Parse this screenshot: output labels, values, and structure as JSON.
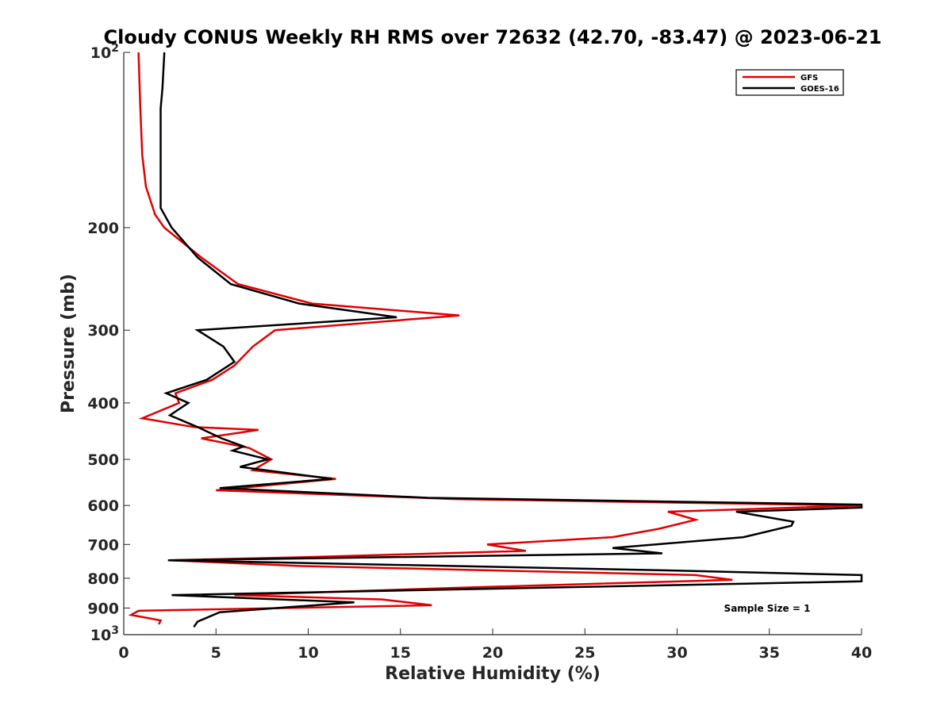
{
  "chart_data": {
    "type": "line",
    "title": "Cloudy CONUS Weekly RH RMS over 72632 (42.70, -83.47) @ 2023-06-21",
    "xlabel": "Relative Humidity (%)",
    "ylabel": "Pressure (mb)",
    "xlim": [
      0,
      40
    ],
    "ylim": [
      100,
      1000
    ],
    "y_scale": "log",
    "y_reversed": true,
    "grid": false,
    "legend_position": "top-right",
    "x_ticks": [
      0,
      5,
      10,
      15,
      20,
      25,
      30,
      35,
      40
    ],
    "y_ticks": [
      {
        "value": 100,
        "base": "10",
        "exp": "2"
      },
      {
        "value": 200,
        "label": "200"
      },
      {
        "value": 300,
        "label": "300"
      },
      {
        "value": 400,
        "label": "400"
      },
      {
        "value": 500,
        "label": "500"
      },
      {
        "value": 600,
        "label": "600"
      },
      {
        "value": 700,
        "label": "700"
      },
      {
        "value": 800,
        "label": "800"
      },
      {
        "value": 900,
        "label": "900"
      },
      {
        "value": 1000,
        "base": "10",
        "exp": "3"
      }
    ],
    "annotation": "Sample Size = 1",
    "series": [
      {
        "name": "GFS",
        "color": "#e00000",
        "points": [
          [
            0.8,
            100
          ],
          [
            0.9,
            125
          ],
          [
            1.0,
            150
          ],
          [
            1.2,
            170
          ],
          [
            1.7,
            190
          ],
          [
            2.2,
            200
          ],
          [
            4.2,
            225
          ],
          [
            6.2,
            250
          ],
          [
            10.2,
            270
          ],
          [
            18.2,
            283
          ],
          [
            8.2,
            300
          ],
          [
            7.0,
            320
          ],
          [
            6.0,
            345
          ],
          [
            4.8,
            365
          ],
          [
            2.8,
            385
          ],
          [
            3.0,
            400
          ],
          [
            1.0,
            425
          ],
          [
            3.8,
            440
          ],
          [
            7.3,
            445
          ],
          [
            4.2,
            460
          ],
          [
            6.8,
            478
          ],
          [
            8.0,
            500
          ],
          [
            7.0,
            522
          ],
          [
            11.5,
            540
          ],
          [
            5.0,
            565
          ],
          [
            18.0,
            585
          ],
          [
            40.0,
            600
          ],
          [
            29.5,
            615
          ],
          [
            31.0,
            635
          ],
          [
            29.0,
            658
          ],
          [
            26.5,
            680
          ],
          [
            19.7,
            700
          ],
          [
            21.8,
            718
          ],
          [
            10.5,
            735
          ],
          [
            2.5,
            745
          ],
          [
            9.5,
            762
          ],
          [
            31.0,
            790
          ],
          [
            33.0,
            805
          ],
          [
            18.5,
            830
          ],
          [
            6.0,
            855
          ],
          [
            14.0,
            870
          ],
          [
            16.7,
            890
          ],
          [
            0.8,
            910
          ],
          [
            0.4,
            925
          ],
          [
            2.0,
            945
          ],
          [
            1.9,
            960
          ]
        ]
      },
      {
        "name": "GOES-16",
        "color": "#000000",
        "points": [
          [
            2.2,
            100
          ],
          [
            2.1,
            115
          ],
          [
            2.0,
            125
          ],
          [
            2.0,
            150
          ],
          [
            2.0,
            170
          ],
          [
            2.0,
            185
          ],
          [
            2.6,
            200
          ],
          [
            4.0,
            225
          ],
          [
            5.8,
            250
          ],
          [
            9.5,
            270
          ],
          [
            14.8,
            285
          ],
          [
            4.0,
            300
          ],
          [
            5.4,
            320
          ],
          [
            6.0,
            340
          ],
          [
            4.5,
            365
          ],
          [
            2.3,
            385
          ],
          [
            3.5,
            400
          ],
          [
            2.5,
            420
          ],
          [
            4.0,
            440
          ],
          [
            5.3,
            460
          ],
          [
            6.5,
            475
          ],
          [
            5.9,
            483
          ],
          [
            7.8,
            500
          ],
          [
            6.3,
            515
          ],
          [
            11.3,
            540
          ],
          [
            5.2,
            560
          ],
          [
            16.5,
            582
          ],
          [
            40.0,
            598
          ],
          [
            40.0,
            605
          ],
          [
            33.2,
            615
          ],
          [
            36.3,
            640
          ],
          [
            36.2,
            650
          ],
          [
            33.6,
            680
          ],
          [
            26.5,
            710
          ],
          [
            29.2,
            725
          ],
          [
            2.4,
            745
          ],
          [
            29.0,
            775
          ],
          [
            40.0,
            790
          ],
          [
            40.0,
            810
          ],
          [
            2.6,
            855
          ],
          [
            12.5,
            880
          ],
          [
            5.2,
            915
          ],
          [
            4.0,
            950
          ],
          [
            3.8,
            970
          ]
        ]
      }
    ]
  }
}
